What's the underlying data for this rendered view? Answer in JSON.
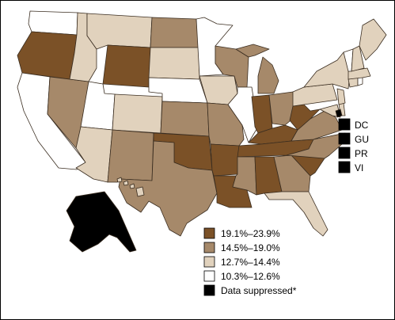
{
  "colors": {
    "cat_a": "#7b5127",
    "cat_b": "#a6896a",
    "cat_c": "#e1d2bd",
    "cat_d": "#ffffff",
    "suppressed": "#000000",
    "outline": "#3a2d20"
  },
  "legend": {
    "items": [
      {
        "key": "cat_a",
        "label": "19.1%–23.9%"
      },
      {
        "key": "cat_b",
        "label": "14.5%–19.0%"
      },
      {
        "key": "cat_c",
        "label": "12.7%–14.4%"
      },
      {
        "key": "cat_d",
        "label": "10.3%–12.6%"
      },
      {
        "key": "suppressed",
        "label": "Data suppressed*"
      }
    ]
  },
  "territories": [
    {
      "label": "DC"
    },
    {
      "label": "GU"
    },
    {
      "label": "PR"
    },
    {
      "label": "VI"
    }
  ]
}
